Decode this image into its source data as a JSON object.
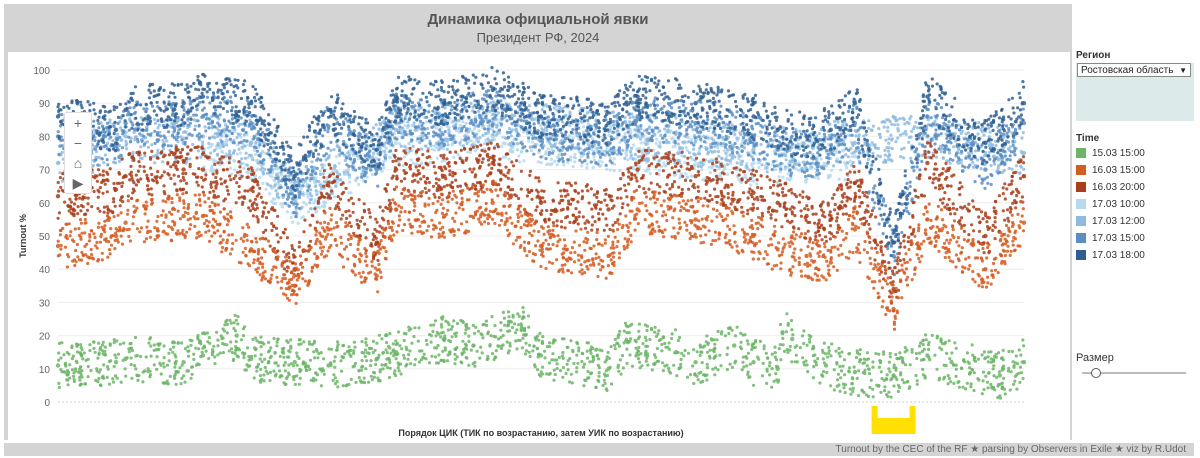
{
  "colors": {
    "series": [
      "#6cb567",
      "#d35c22",
      "#a83e1a",
      "#b5d9ef",
      "#8fbbe0",
      "#5a8ec3",
      "#2f5f91"
    ],
    "highlight": "#ffe000"
  },
  "icons": {
    "zoom_in": "plus-icon",
    "zoom_out": "minus-icon",
    "home": "home-icon",
    "play": "play-icon"
  },
  "chart_data": {
    "type": "scatter",
    "title": "Динамика официальной явки",
    "subtitle": "Президент РФ, 2024",
    "ylabel": "Turnout %",
    "xlabel": "Порядок ЦИК (ТИК по возрастанию, затем УИК по возрастанию)",
    "ylim": [
      0,
      100
    ],
    "yticks": [
      0,
      10,
      20,
      30,
      40,
      50,
      60,
      70,
      80,
      90,
      100
    ],
    "xlim": [
      0,
      1000
    ],
    "grid": true,
    "legend_position": "right",
    "series": [
      {
        "name": "15.03 15:00",
        "x": [
          0,
          60,
          70,
          130,
          150,
          185,
          200,
          245,
          280,
          330,
          350,
          400,
          430,
          480,
          500,
          570,
          590,
          640,
          660,
          700,
          720,
          745,
          750,
          760,
          795,
          825,
          865,
          900,
          925,
          975,
          1000
        ],
        "y": [
          11,
          12,
          13,
          12,
          14,
          20,
          13,
          12,
          11,
          13,
          15,
          19,
          17,
          22,
          14,
          10,
          18,
          15,
          12,
          17,
          12,
          10,
          21,
          19,
          11,
          9,
          8,
          14,
          12,
          8,
          12
        ]
      },
      {
        "name": "16.03 15:00",
        "x": [
          0,
          60,
          70,
          130,
          150,
          200,
          245,
          280,
          330,
          350,
          400,
          450,
          500,
          570,
          600,
          660,
          720,
          745,
          775,
          800,
          825,
          865,
          900,
          960,
          1000
        ],
        "y": [
          47,
          50,
          54,
          56,
          56,
          46,
          35,
          52,
          38,
          58,
          56,
          60,
          47,
          44,
          58,
          55,
          50,
          46,
          44,
          42,
          52,
          28,
          55,
          40,
          54
        ]
      },
      {
        "name": "16.03 20:00",
        "x": [
          0,
          60,
          70,
          130,
          150,
          200,
          245,
          280,
          330,
          350,
          400,
          450,
          500,
          570,
          600,
          660,
          720,
          745,
          775,
          800,
          825,
          865,
          900,
          960,
          1000
        ],
        "y": [
          62,
          64,
          68,
          70,
          70,
          64,
          40,
          66,
          48,
          70,
          68,
          72,
          60,
          58,
          70,
          68,
          63,
          60,
          56,
          55,
          66,
          34,
          72,
          50,
          68
        ]
      },
      {
        "name": "17.03 10:00",
        "x": [
          150,
          200,
          245,
          350,
          450,
          600,
          720,
          825
        ],
        "y": [
          76,
          74,
          60,
          78,
          80,
          76,
          72,
          74
        ]
      },
      {
        "name": "17.03 12:00",
        "x": [
          0,
          70,
          130,
          150,
          200,
          245,
          350,
          450,
          600,
          720,
          825,
          900,
          1000
        ],
        "y": [
          72,
          80,
          78,
          80,
          78,
          62,
          82,
          84,
          80,
          76,
          78,
          80,
          75
        ]
      },
      {
        "name": "17.03 15:00",
        "x": [
          0,
          60,
          70,
          130,
          150,
          200,
          245,
          280,
          330,
          350,
          400,
          450,
          500,
          570,
          600,
          660,
          720,
          745,
          775,
          800,
          825,
          865,
          900,
          960,
          1000
        ],
        "y": [
          80,
          77,
          84,
          84,
          86,
          84,
          62,
          83,
          70,
          86,
          84,
          88,
          80,
          78,
          86,
          84,
          80,
          76,
          74,
          76,
          84,
          44,
          86,
          70,
          84
        ]
      },
      {
        "name": "17.03 18:00",
        "x": [
          0,
          60,
          70,
          130,
          150,
          200,
          245,
          280,
          330,
          350,
          400,
          450,
          500,
          570,
          600,
          660,
          720,
          745,
          775,
          800,
          825,
          865,
          900,
          960,
          1000
        ],
        "y": [
          86,
          82,
          88,
          90,
          92,
          90,
          68,
          88,
          76,
          92,
          90,
          94,
          86,
          84,
          92,
          90,
          86,
          82,
          80,
          82,
          90,
          48,
          92,
          78,
          90
        ]
      }
    ]
  },
  "region": {
    "label": "Регион",
    "selected": "Ростовская область"
  },
  "legend": {
    "title": "Time"
  },
  "size_control": {
    "label": "Размер",
    "value": 0.1
  },
  "footer": {
    "text": "Turnout by the CEC of the RF ★ parsing by Observers in Exile ★ viz by R.Udot"
  }
}
